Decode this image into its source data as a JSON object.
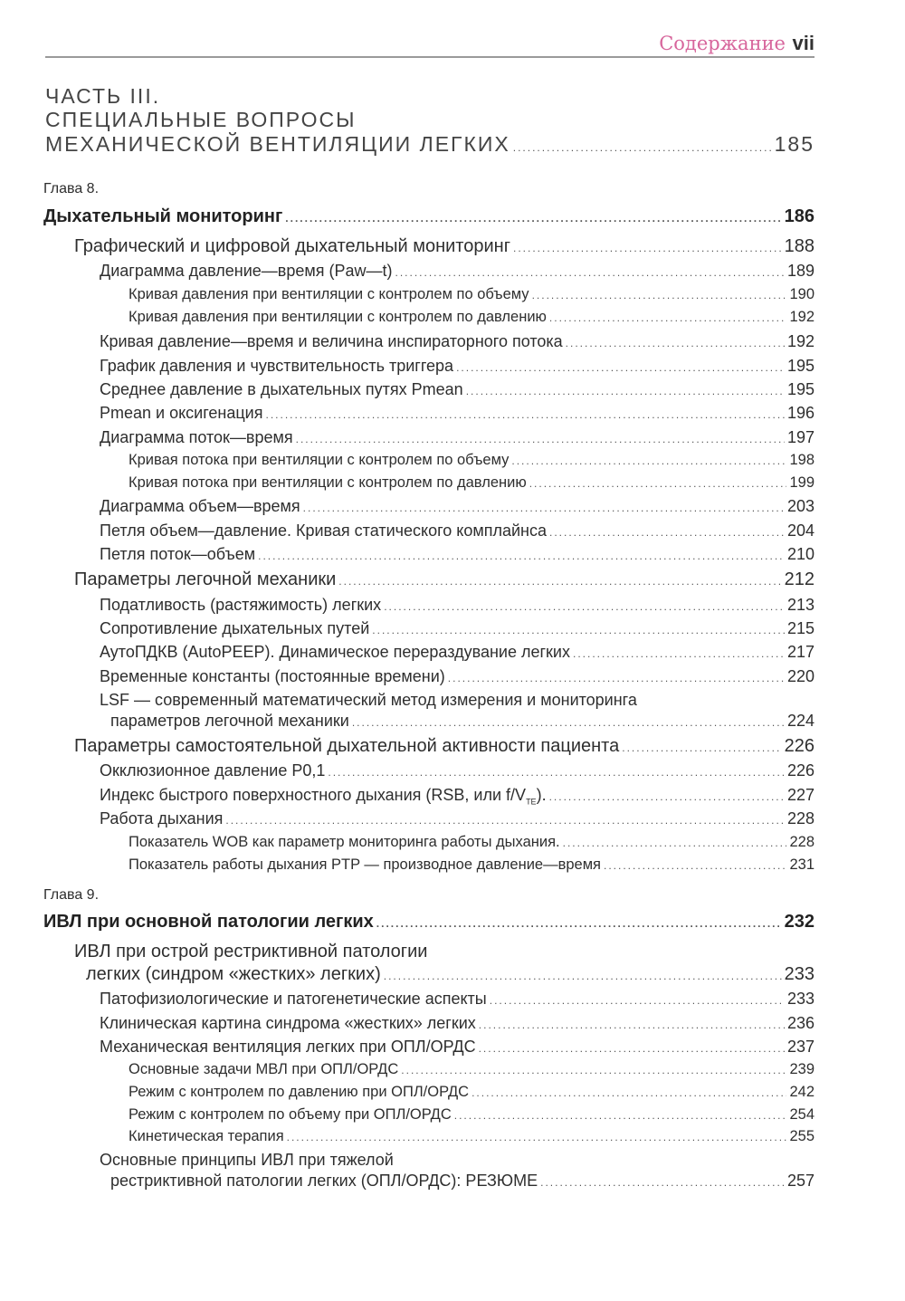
{
  "header": {
    "section_title": "Содержание",
    "page_number": "vii",
    "accent_color": "#d7669c"
  },
  "part": {
    "lines": [
      "ЧАСТЬ III.",
      "СПЕЦИАЛЬНЫЕ ВОПРОСЫ",
      "МЕХАНИЧЕСКОЙ ВЕНТИЛЯЦИИ ЛЕГКИХ"
    ],
    "page": "185"
  },
  "entries": [
    {
      "kind": "chap-label",
      "text": "Глава 8."
    },
    {
      "kind": "chap",
      "text": "Дыхательный мониторинг",
      "page": "186"
    },
    {
      "kind": "l1",
      "text": "Графический и цифровой дыхательный мониторинг",
      "page": "188"
    },
    {
      "kind": "l2",
      "text": "Диаграмма давление—время (Paw—t)",
      "page": "189"
    },
    {
      "kind": "l3",
      "text": "Кривая давления при вентиляции с контролем по объему",
      "page": "190"
    },
    {
      "kind": "l3",
      "text": "Кривая давления при вентиляции с контролем по давлению",
      "page": "192"
    },
    {
      "kind": "l2",
      "text": "Кривая давление—время и величина инспираторного потока",
      "page": "192"
    },
    {
      "kind": "l2",
      "text": "График давления и чувствительность триггера",
      "page": "195"
    },
    {
      "kind": "l2",
      "text": "Среднее давление в дыхательных путях Pmean",
      "page": "195"
    },
    {
      "kind": "l2",
      "text": "Pmean и оксигенация",
      "page": "196"
    },
    {
      "kind": "l2",
      "text": "Диаграмма поток—время",
      "page": "197"
    },
    {
      "kind": "l3",
      "text": "Кривая потока при вентиляции с контролем по объему",
      "page": "198"
    },
    {
      "kind": "l3",
      "text": "Кривая потока при вентиляции с контролем по давлению",
      "page": "199"
    },
    {
      "kind": "l2",
      "text": "Диаграмма объем—время",
      "page": "203"
    },
    {
      "kind": "l2",
      "text": "Петля объем—давление. Кривая статического комплайнса",
      "page": "204"
    },
    {
      "kind": "l2",
      "text": "Петля поток—объем",
      "page": "210"
    },
    {
      "kind": "l1",
      "text": "Параметры легочной механики",
      "page": "212"
    },
    {
      "kind": "l2",
      "text": "Податливость (растяжимость) легких",
      "page": "213"
    },
    {
      "kind": "l2",
      "text": "Сопротивление дыхательных путей",
      "page": "215"
    },
    {
      "kind": "l2",
      "text": "АутоПДКВ (AutoPEEP). Динамическое перераздувание легких",
      "page": "217"
    },
    {
      "kind": "l2",
      "text": "Временные константы (постоянные времени)",
      "page": "220"
    },
    {
      "kind": "l2",
      "text": "LSF — современный математический метод измерения и мониторинга",
      "cont": "параметров легочной механики",
      "page": "224"
    },
    {
      "kind": "l1",
      "text": "Параметры самостоятельной дыхательной активности пациента",
      "page": "226"
    },
    {
      "kind": "l2",
      "text": "Окклюзионное давление P0,1",
      "page": "226"
    },
    {
      "kind": "l2",
      "text": "Индекс быстрого поверхностного дыхания (RSB, или f/VTE).",
      "page": "227"
    },
    {
      "kind": "l2",
      "text": "Работа дыхания",
      "page": "228"
    },
    {
      "kind": "l3",
      "text": "Показатель WOB как параметр мониторинга работы дыхания.",
      "page": "228"
    },
    {
      "kind": "l3",
      "text": "Показатель работы дыхания PTP — производное давление—время",
      "page": "231"
    },
    {
      "kind": "chap-label",
      "text": "Глава 9."
    },
    {
      "kind": "chap",
      "text": "ИВЛ при основной патологии легких",
      "page": "232"
    },
    {
      "kind": "l1",
      "text": "ИВЛ при острой рестриктивной патологии",
      "cont": "легких (синдром «жестких» легких)",
      "page": "233"
    },
    {
      "kind": "l2",
      "text": "Патофизиологические и патогенетические аспекты",
      "page": "233"
    },
    {
      "kind": "l2",
      "text": "Клиническая картина синдрома «жестких» легких",
      "page": "236"
    },
    {
      "kind": "l2",
      "text": "Механическая вентиляция легких при ОПЛ/ОРДС",
      "page": "237"
    },
    {
      "kind": "l3",
      "text": "Основные задачи МВЛ при ОПЛ/ОРДС",
      "page": "239"
    },
    {
      "kind": "l3",
      "text": "Режим с контролем по давлению при ОПЛ/ОРДС",
      "page": "242"
    },
    {
      "kind": "l3",
      "text": "Режим с контролем по объему при ОПЛ/ОРДС",
      "page": "254"
    },
    {
      "kind": "l3",
      "text": "Кинетическая терапия",
      "page": "255"
    },
    {
      "kind": "l2",
      "text": "Основные принципы ИВЛ при тяжелой",
      "cont": "рестриктивной патологии легких (ОПЛ/ОРДС): РЕЗЮМЕ",
      "page": "257"
    }
  ]
}
